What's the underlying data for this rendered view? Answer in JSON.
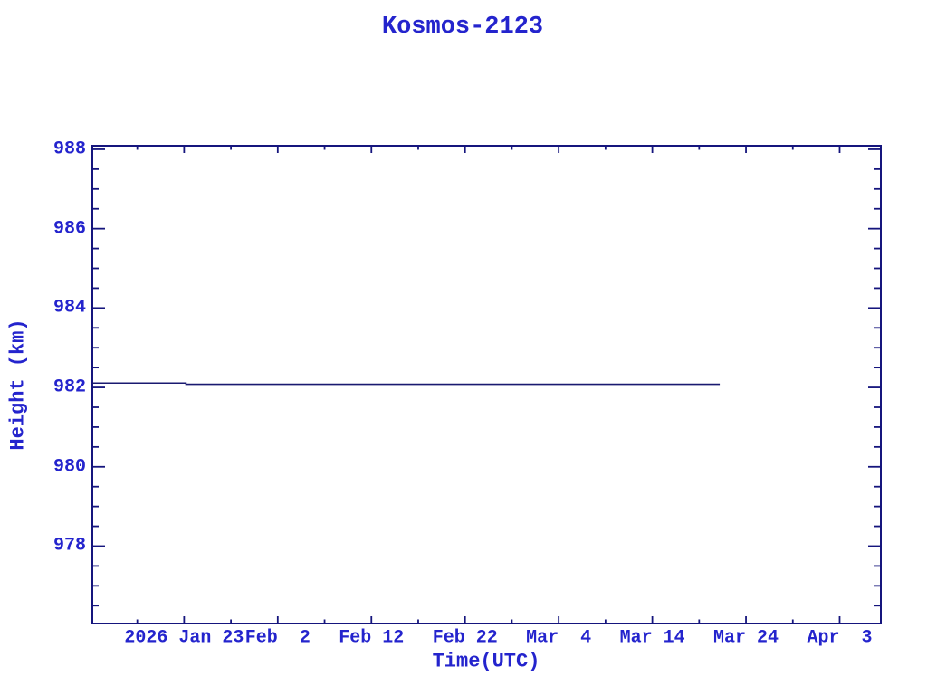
{
  "colors": {
    "text": "#2424cd",
    "axis": "#15157d",
    "line": "#1a1a70",
    "background": "#ffffff"
  },
  "chart_data": {
    "type": "line",
    "title": "Kosmos-2123",
    "xlabel": "Time(UTC)",
    "ylabel": "Height (km)",
    "grid": false,
    "legend": "none",
    "x_axis": {
      "day_origin": "2026-01-01",
      "lim_days": [
        12.2,
        96.4
      ],
      "major_ticks": [
        {
          "day": 22,
          "label": "2026 Jan 23"
        },
        {
          "day": 32,
          "label": "Feb  2"
        },
        {
          "day": 42,
          "label": "Feb 12"
        },
        {
          "day": 52,
          "label": "Feb 22"
        },
        {
          "day": 62,
          "label": "Mar  4"
        },
        {
          "day": 72,
          "label": "Mar 14"
        },
        {
          "day": 82,
          "label": "Mar 24"
        },
        {
          "day": 92,
          "label": "Apr  3"
        }
      ],
      "minor_tick_days": [
        17,
        27,
        37,
        47,
        57,
        67,
        77,
        87
      ]
    },
    "y_axis": {
      "lim_km": [
        976.05,
        988.09
      ],
      "major_ticks": [
        978,
        980,
        982,
        984,
        986,
        988
      ],
      "minor_step_km": 0.5
    },
    "series": [
      {
        "name": "height_km",
        "points_day_km": [
          [
            12.2,
            982.11
          ],
          [
            22.2,
            982.11
          ],
          [
            22.2,
            982.08
          ],
          [
            79.2,
            982.08
          ]
        ]
      }
    ]
  }
}
